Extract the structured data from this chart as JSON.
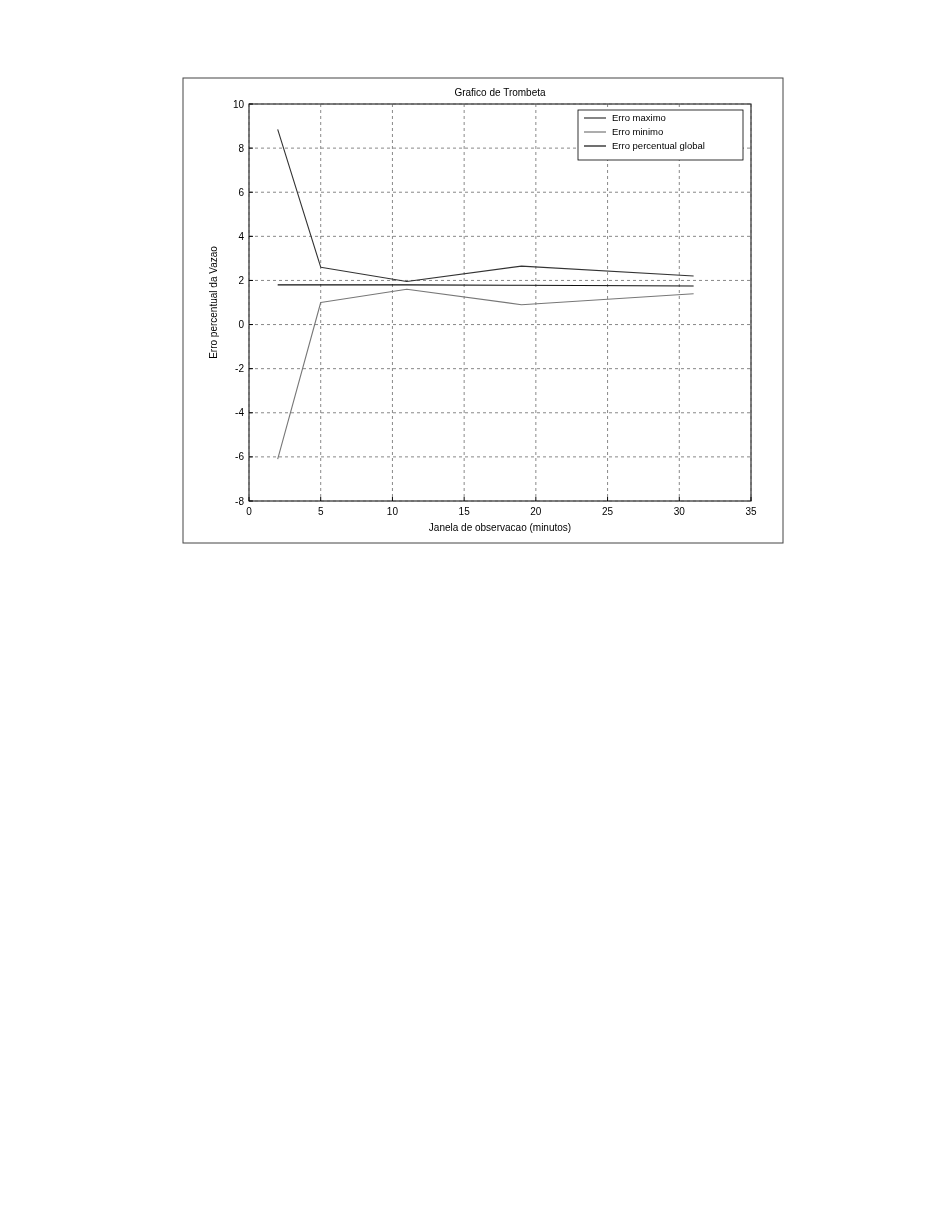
{
  "chart_data": {
    "type": "line",
    "title": "Grafico de Trombeta",
    "xlabel": "Janela de observacao (minutos)",
    "ylabel": "Erro percentual da Vazao",
    "x": [
      2,
      5,
      11,
      19,
      31
    ],
    "series": [
      {
        "name": "Erro maximo",
        "color": "#333333",
        "values": [
          8.85,
          2.6,
          1.95,
          2.65,
          2.2
        ]
      },
      {
        "name": "Erro minimo",
        "color": "#777777",
        "values": [
          -6.1,
          1.0,
          1.6,
          0.9,
          1.4
        ]
      },
      {
        "name": "Erro percentual global",
        "color": "#111111",
        "values": [
          1.8,
          1.8,
          1.8,
          1.78,
          1.75
        ]
      }
    ],
    "xlim": [
      0,
      35
    ],
    "xticks": [
      0,
      5,
      10,
      15,
      20,
      25,
      30,
      35
    ],
    "ylim": [
      -8,
      10
    ],
    "yticks": [
      -8,
      -6,
      -4,
      -2,
      0,
      2,
      4,
      6,
      8,
      10
    ],
    "grid": true,
    "legend": "top right",
    "marker": "none",
    "line_style": "solid"
  }
}
